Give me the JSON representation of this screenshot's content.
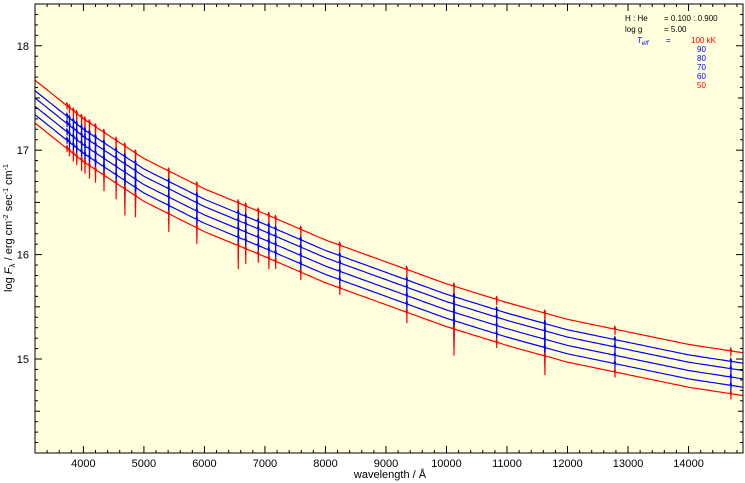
{
  "chart_data": {
    "type": "line",
    "xlabel": "wavelength / Å",
    "ylabel": "log F_λ / erg cm⁻² sec⁻¹ cm⁻¹",
    "ylabel_parts": {
      "prefix": "log ",
      "symbol": "F",
      "sub": "λ",
      "unit1": " / erg cm",
      "sup1": "-2",
      "unit2": " sec",
      "sup2": "-1",
      "unit3": " cm",
      "sup3": "-1"
    },
    "xlim": [
      3200,
      14900
    ],
    "ylim": [
      14.1,
      18.4
    ],
    "x_ticks": [
      4000,
      5000,
      6000,
      7000,
      8000,
      9000,
      10000,
      11000,
      12000,
      13000,
      14000
    ],
    "y_ticks": [
      15,
      16,
      17,
      18
    ],
    "grid": false,
    "legend": {
      "placement": "top-right",
      "hhe_label": "H : He",
      "hhe_value": "= 0.100 : 0.900",
      "logg_label": "log g",
      "logg_value": "= 5.00",
      "teff_label": "T",
      "teff_sub": "eff",
      "teff_eq": "=",
      "teff_entries": [
        "100 kK",
        "90",
        "80",
        "70",
        "60",
        "50"
      ]
    },
    "continuum_x": [
      3200,
      4000,
      5000,
      6000,
      7000,
      8000,
      9000,
      10000,
      11000,
      12000,
      13000,
      14000,
      14900
    ],
    "series": [
      {
        "teff_kK": 100,
        "color": "#ff0000",
        "values": [
          17.67,
          17.3,
          16.92,
          16.63,
          16.39,
          16.14,
          15.93,
          15.72,
          15.54,
          15.38,
          15.26,
          15.14,
          15.06
        ]
      },
      {
        "teff_kK": 90,
        "color": "#0000ff",
        "values": [
          17.57,
          17.2,
          16.82,
          16.53,
          16.29,
          16.04,
          15.83,
          15.62,
          15.44,
          15.28,
          15.16,
          15.04,
          14.96
        ]
      },
      {
        "teff_kK": 80,
        "color": "#0000ff",
        "values": [
          17.5,
          17.13,
          16.75,
          16.46,
          16.22,
          15.97,
          15.76,
          15.55,
          15.37,
          15.21,
          15.09,
          14.97,
          14.89
        ]
      },
      {
        "teff_kK": 70,
        "color": "#0000ff",
        "values": [
          17.42,
          17.05,
          16.67,
          16.38,
          16.14,
          15.89,
          15.68,
          15.47,
          15.29,
          15.13,
          15.01,
          14.89,
          14.81
        ]
      },
      {
        "teff_kK": 60,
        "color": "#0000ff",
        "values": [
          17.34,
          16.97,
          16.59,
          16.3,
          16.06,
          15.81,
          15.6,
          15.39,
          15.21,
          15.05,
          14.93,
          14.81,
          14.73
        ]
      },
      {
        "teff_kK": 50,
        "color": "#ff0000",
        "values": [
          17.26,
          16.89,
          16.51,
          16.22,
          15.98,
          15.73,
          15.52,
          15.31,
          15.13,
          14.97,
          14.85,
          14.73,
          14.65
        ]
      }
    ],
    "lines": [
      {
        "wavelength": 3730,
        "depth": 0.03
      },
      {
        "wavelength": 3770,
        "depth": 0.05
      },
      {
        "wavelength": 3835,
        "depth": 0.07
      },
      {
        "wavelength": 3889,
        "depth": 0.08
      },
      {
        "wavelength": 3970,
        "depth": 0.1
      },
      {
        "wavelength": 4026,
        "depth": 0.1
      },
      {
        "wavelength": 4101,
        "depth": 0.12
      },
      {
        "wavelength": 4200,
        "depth": 0.12
      },
      {
        "wavelength": 4340,
        "depth": 0.15
      },
      {
        "wavelength": 4541,
        "depth": 0.15
      },
      {
        "wavelength": 4686,
        "depth": 0.25
      },
      {
        "wavelength": 4861,
        "depth": 0.2
      },
      {
        "wavelength": 5411,
        "depth": 0.17
      },
      {
        "wavelength": 5876,
        "depth": 0.15
      },
      {
        "wavelength": 6560,
        "depth": 0.22
      },
      {
        "wavelength": 6683,
        "depth": 0.14
      },
      {
        "wavelength": 6890,
        "depth": 0.08
      },
      {
        "wavelength": 7065,
        "depth": 0.1
      },
      {
        "wavelength": 7177,
        "depth": 0.07
      },
      {
        "wavelength": 7592,
        "depth": 0.07
      },
      {
        "wavelength": 8237,
        "depth": 0.06
      },
      {
        "wavelength": 9345,
        "depth": 0.1
      },
      {
        "wavelength": 10124,
        "depth": 0.25
      },
      {
        "wavelength": 10830,
        "depth": 0.05
      },
      {
        "wavelength": 11626,
        "depth": 0.18
      },
      {
        "wavelength": 12784,
        "depth": 0.05
      },
      {
        "wavelength": 14700,
        "depth": 0.05
      }
    ]
  }
}
